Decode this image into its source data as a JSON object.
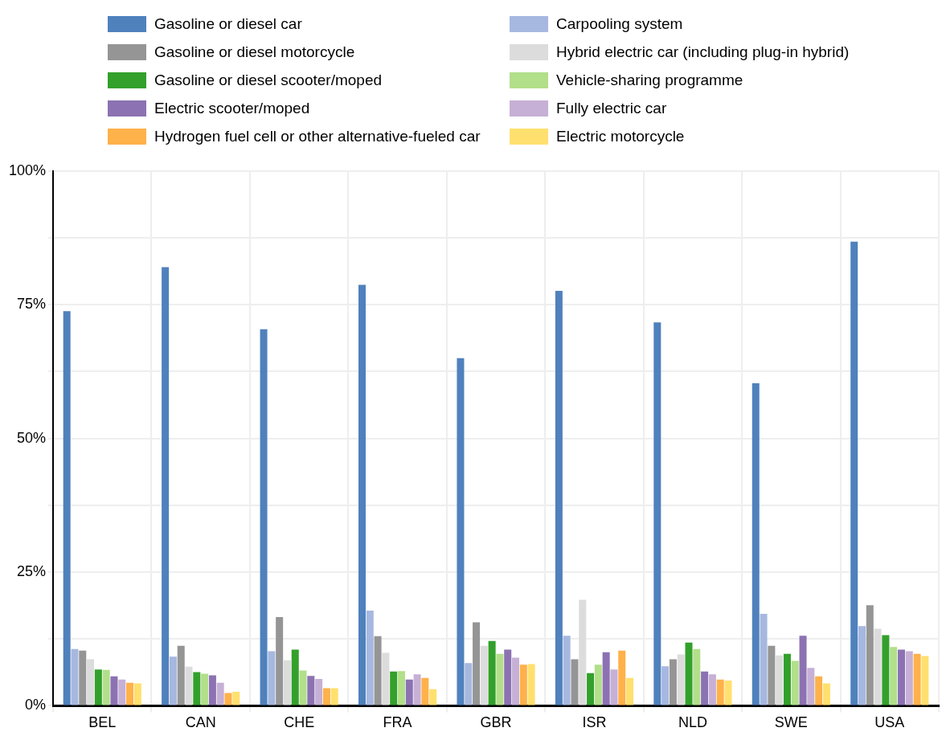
{
  "chart_data": {
    "type": "bar",
    "categories": [
      "BEL",
      "CAN",
      "CHE",
      "FRA",
      "GBR",
      "ISR",
      "NLD",
      "SWE",
      "USA"
    ],
    "series": [
      {
        "name": "Gasoline or diesel car",
        "color": "#4f81bd",
        "values": [
          73.8,
          82.0,
          70.4,
          78.7,
          65.0,
          77.6,
          71.7,
          60.3,
          86.8
        ]
      },
      {
        "name": "Carpooling system",
        "color": "#a6b8e0",
        "values": [
          10.6,
          9.2,
          10.2,
          17.8,
          8.0,
          13.1,
          7.4,
          17.2,
          14.9
        ]
      },
      {
        "name": "Gasoline or diesel motorcycle",
        "color": "#959595",
        "values": [
          10.3,
          11.2,
          16.6,
          13.0,
          15.6,
          8.7,
          8.7,
          11.2,
          18.8
        ]
      },
      {
        "name": "Hybrid electric car (including plug-in hybrid)",
        "color": "#dcdcdc",
        "values": [
          8.7,
          7.3,
          8.5,
          9.9,
          11.2,
          19.8,
          9.6,
          9.4,
          14.4
        ]
      },
      {
        "name": "Gasoline or diesel scooter/moped",
        "color": "#33a02c",
        "values": [
          6.8,
          6.3,
          10.5,
          6.4,
          12.1,
          6.1,
          11.8,
          9.7,
          13.2
        ]
      },
      {
        "name": "Vehicle-sharing programme",
        "color": "#b2df8a",
        "values": [
          6.7,
          6.0,
          6.6,
          6.5,
          9.7,
          7.7,
          10.6,
          8.4,
          11.0
        ]
      },
      {
        "name": "Electric scooter/moped",
        "color": "#8c72b2",
        "values": [
          5.5,
          5.7,
          5.6,
          4.9,
          10.5,
          10.0,
          6.4,
          13.1,
          10.5
        ]
      },
      {
        "name": "Fully electric car",
        "color": "#c6b0d5",
        "values": [
          4.9,
          4.3,
          5.0,
          5.9,
          9.0,
          6.8,
          5.9,
          7.1,
          10.2
        ]
      },
      {
        "name": "Hydrogen fuel cell or other alternative-fueled car",
        "color": "#ffb14a",
        "values": [
          4.3,
          2.4,
          3.3,
          5.2,
          7.7,
          10.3,
          4.9,
          5.5,
          9.7
        ]
      },
      {
        "name": "Electric motorcycle",
        "color": "#ffe06e",
        "values": [
          4.2,
          2.6,
          3.3,
          3.1,
          7.8,
          5.2,
          4.7,
          4.2,
          9.3
        ]
      }
    ],
    "ylim": [
      0,
      100
    ],
    "yticks": [
      {
        "value": 0,
        "label": "0%"
      },
      {
        "value": 12.5,
        "label": null
      },
      {
        "value": 25,
        "label": "25%"
      },
      {
        "value": 37.5,
        "label": null
      },
      {
        "value": 50,
        "label": "50%"
      },
      {
        "value": 62.5,
        "label": null
      },
      {
        "value": 75,
        "label": "75%"
      },
      {
        "value": 87.5,
        "label": null
      },
      {
        "value": 100,
        "label": "100%"
      }
    ],
    "grid": true,
    "legend": "top"
  }
}
